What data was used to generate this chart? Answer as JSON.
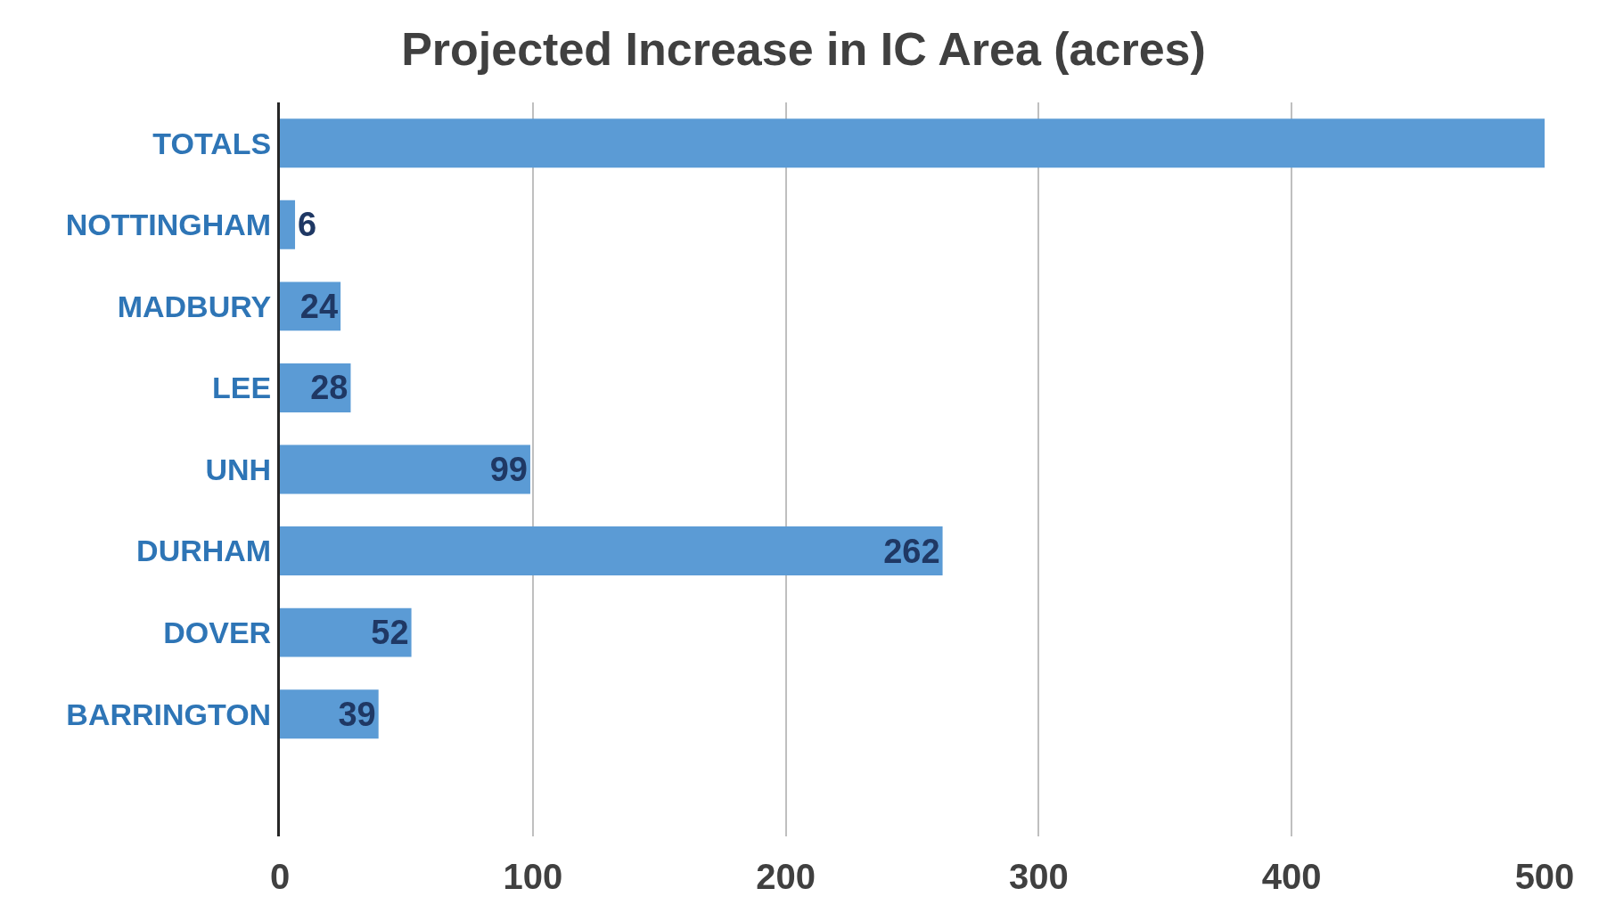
{
  "chart_data": {
    "type": "bar",
    "orientation": "horizontal",
    "title": "Projected Increase in IC Area (acres)",
    "categories": [
      "TOTALS",
      "NOTTINGHAM",
      "MADBURY",
      "LEE",
      "UNH",
      "DURHAM",
      "DOVER",
      "BARRINGTON",
      null
    ],
    "values": [
      500,
      6,
      24,
      28,
      99,
      262,
      52,
      39,
      null
    ],
    "value_labels": [
      null,
      "6",
      "24",
      "28",
      "99",
      "262",
      "52",
      "39",
      null
    ],
    "color": "#5b9bd5",
    "xlim": [
      0,
      500
    ],
    "xticks": [
      0,
      100,
      200,
      300,
      400,
      500
    ],
    "grid": "x"
  }
}
